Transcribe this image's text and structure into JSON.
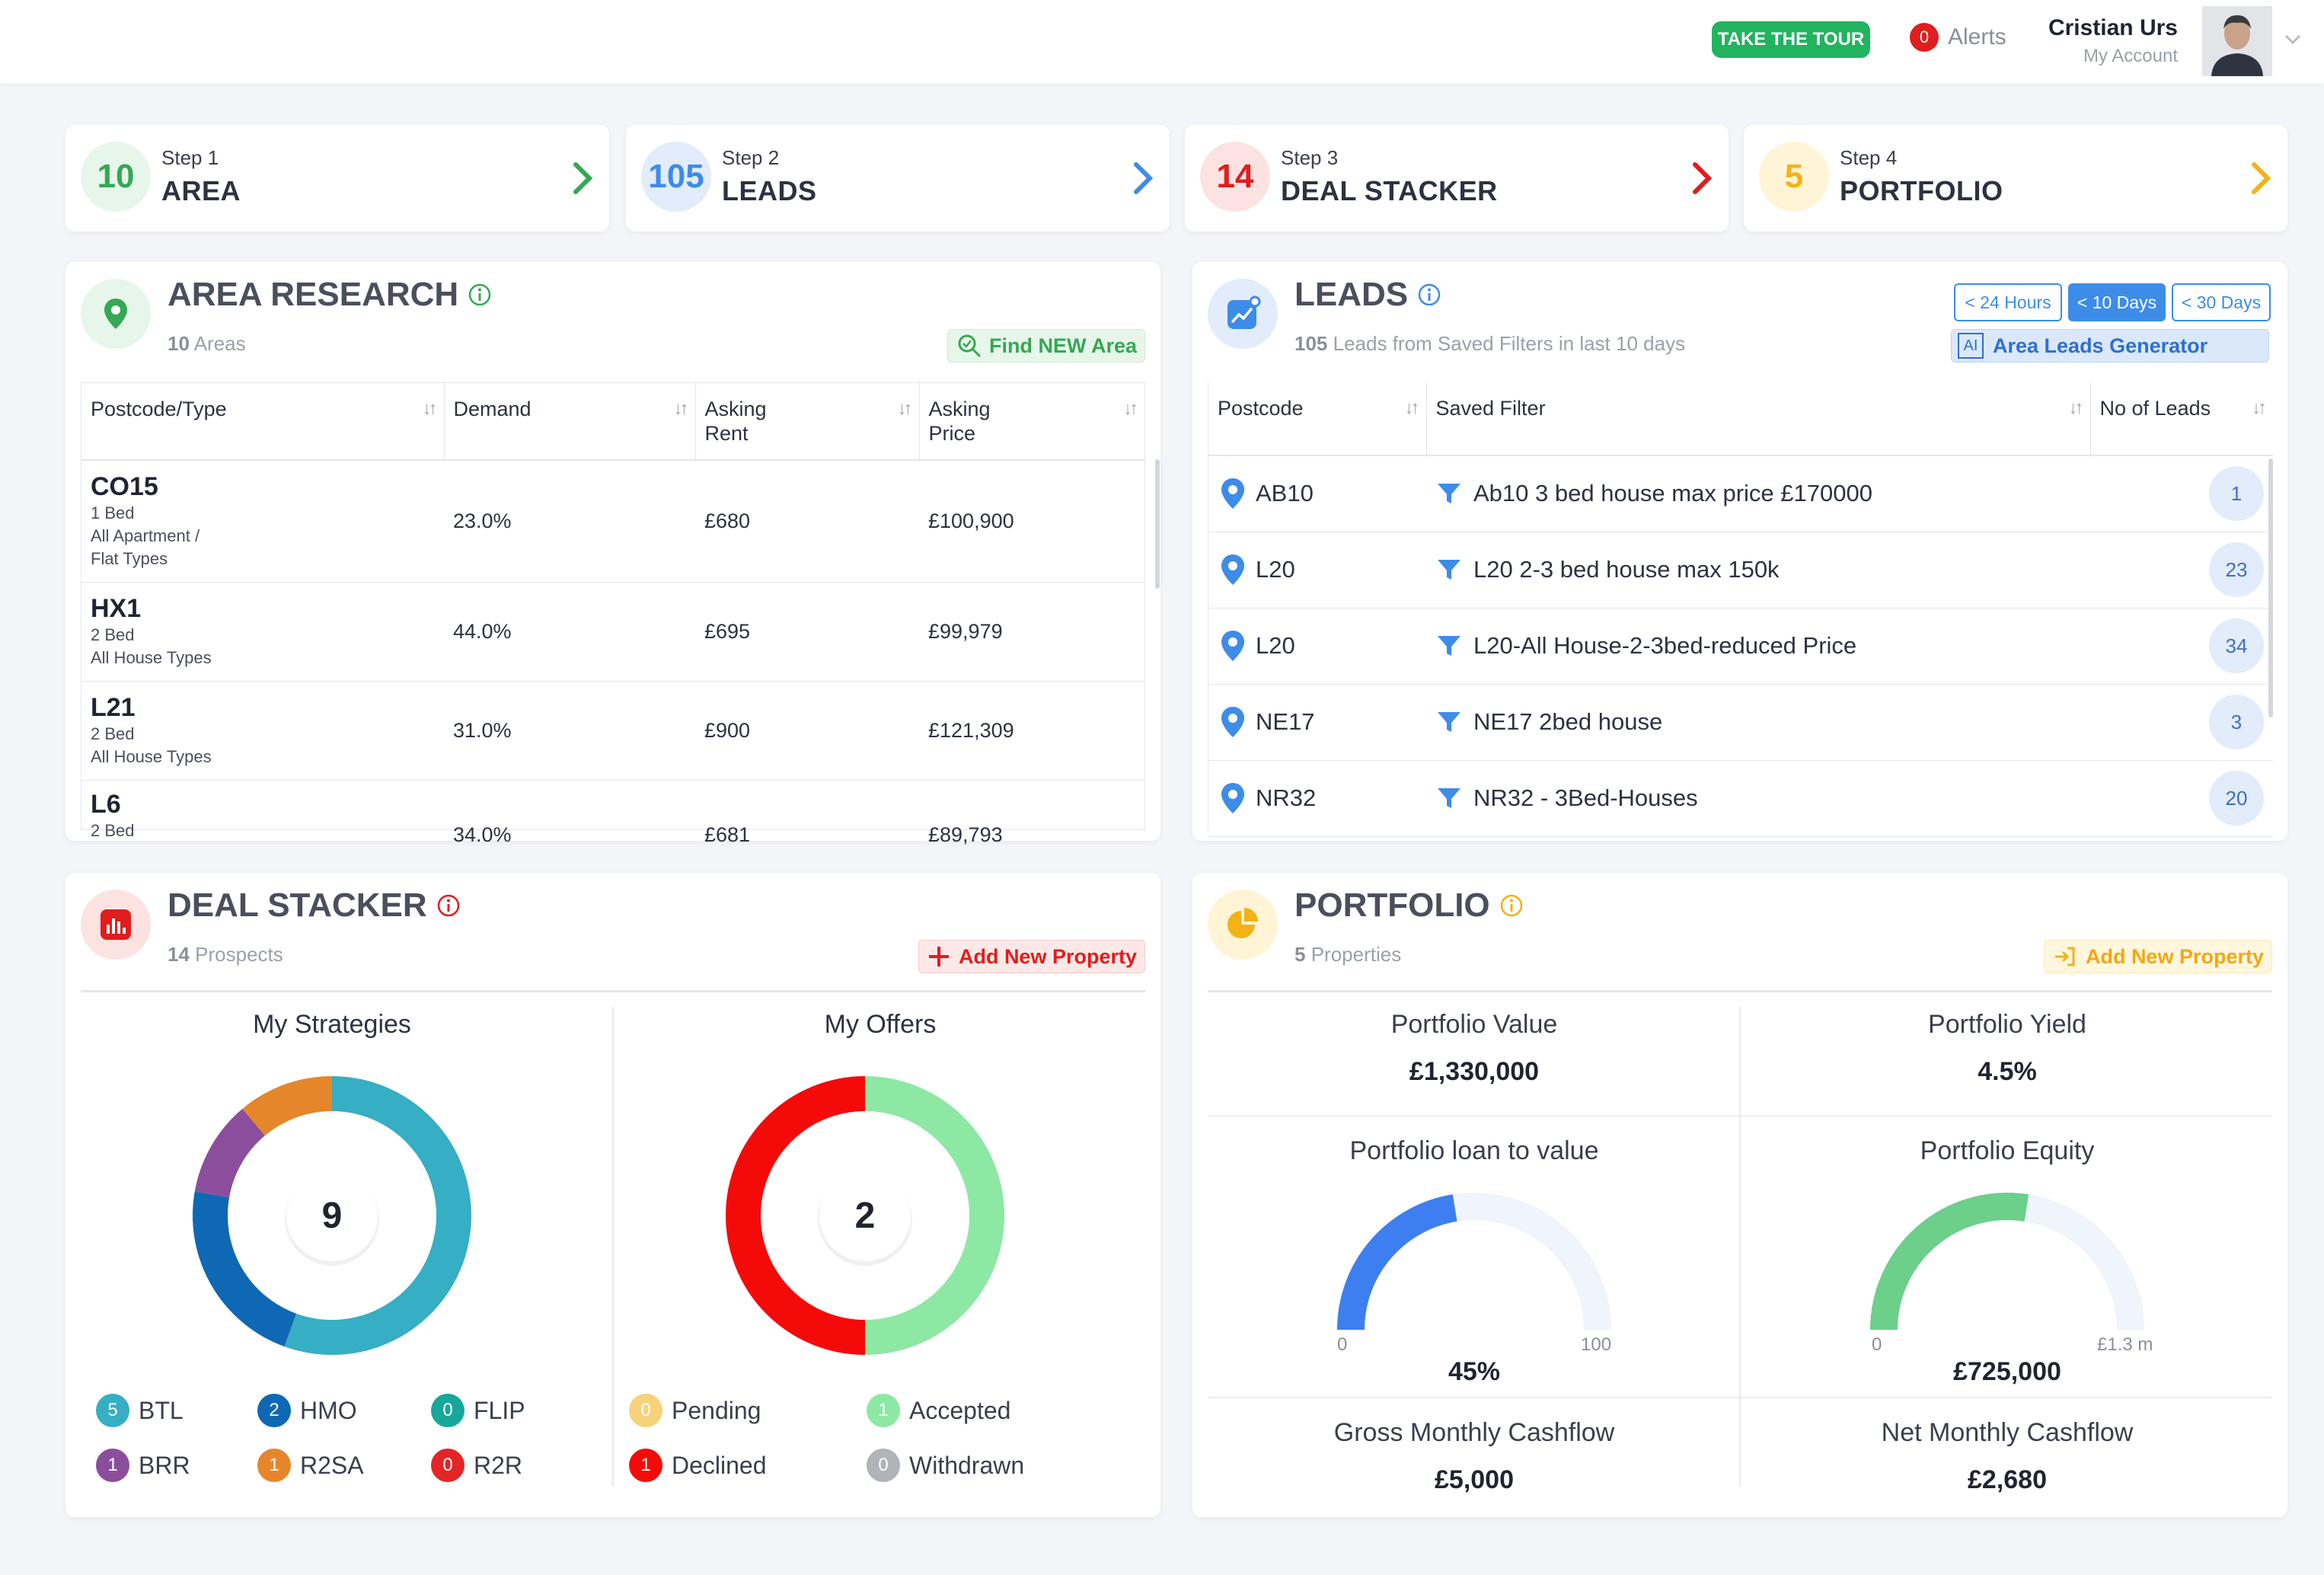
{
  "header": {
    "tour_label": "TAKE THE TOUR",
    "alerts_count": "0",
    "alerts_label": "Alerts",
    "user_name": "Cristian Urs",
    "user_sub": "My Account"
  },
  "steps": [
    {
      "num": "10",
      "small": "Step 1",
      "big": "AREA",
      "color": "#34a853",
      "bg": "#e7f6ea"
    },
    {
      "num": "105",
      "small": "Step 2",
      "big": "LEADS",
      "color": "#3d8ce8",
      "bg": "#e3ecfb"
    },
    {
      "num": "14",
      "small": "Step 3",
      "big": "DEAL STACKER",
      "color": "#e11d1d",
      "bg": "#fde2e2"
    },
    {
      "num": "5",
      "small": "Step 4",
      "big": "PORTFOLIO",
      "color": "#f3b216",
      "bg": "#fff4d6"
    }
  ],
  "area": {
    "title": "AREA RESEARCH",
    "sub_count": "10",
    "sub_label": "Areas",
    "find_label": "Find NEW Area",
    "columns": [
      "Postcode/Type",
      "Demand",
      "Asking\nRent",
      "Asking\nPrice"
    ],
    "rows": [
      {
        "code": "CO15",
        "line1": "1 Bed",
        "line2": "All Apartment /",
        "line3": "Flat Types",
        "demand": "23.0%",
        "rent": "£680",
        "price": "£100,900"
      },
      {
        "code": "HX1",
        "line1": "2 Bed",
        "line2": "All House Types",
        "line3": "",
        "demand": "44.0%",
        "rent": "£695",
        "price": "£99,979"
      },
      {
        "code": "L21",
        "line1": "2 Bed",
        "line2": "All House Types",
        "line3": "",
        "demand": "31.0%",
        "rent": "£900",
        "price": "£121,309"
      },
      {
        "code": "L6",
        "line1": "2 Bed",
        "line2": "",
        "line3": "",
        "demand": "34.0%",
        "rent": "£681",
        "price": "£89,793"
      }
    ]
  },
  "leads": {
    "title": "LEADS",
    "sub_count": "105",
    "sub_label": "Leads from Saved Filters in last 10 days",
    "ranges": [
      "< 24 Hours",
      "< 10 Days",
      "< 30 Days"
    ],
    "active_range": 1,
    "ai_label": "AI",
    "generator_label": "Area Leads Generator",
    "columns": [
      "Postcode",
      "Saved Filter",
      "No of Leads"
    ],
    "rows": [
      {
        "postcode": "AB10",
        "filter": "Ab10 3 bed house max price £170000",
        "count": "1"
      },
      {
        "postcode": "L20",
        "filter": "L20 2-3 bed house max 150k",
        "count": "23"
      },
      {
        "postcode": "L20",
        "filter": "L20-All House-2-3bed-reduced Price",
        "count": "34"
      },
      {
        "postcode": "NE17",
        "filter": "NE17 2bed house",
        "count": "3"
      },
      {
        "postcode": "NR32",
        "filter": "NR32 - 3Bed-Houses",
        "count": "20"
      }
    ]
  },
  "deal": {
    "title": "DEAL STACKER",
    "sub_count": "14",
    "sub_label": "Prospects",
    "add_label": "Add New Property",
    "strategies_title": "My Strategies",
    "strategies_total": "9",
    "offers_title": "My Offers",
    "offers_total": "2",
    "strategies": [
      {
        "name": "BTL",
        "count": 5,
        "color": "#36aec4"
      },
      {
        "name": "HMO",
        "count": 2,
        "color": "#0f68b4"
      },
      {
        "name": "FLIP",
        "count": 0,
        "color": "#16a79a"
      },
      {
        "name": "BRR",
        "count": 1,
        "color": "#8b4e9c"
      },
      {
        "name": "R2SA",
        "count": 1,
        "color": "#e6862a"
      },
      {
        "name": "R2R",
        "count": 0,
        "color": "#e22626"
      }
    ],
    "offers": [
      {
        "name": "Pending",
        "count": 0,
        "color": "#f7d27a"
      },
      {
        "name": "Accepted",
        "count": 1,
        "color": "#8de8a4"
      },
      {
        "name": "Declined",
        "count": 1,
        "color": "#f50a0a"
      },
      {
        "name": "Withdrawn",
        "count": 0,
        "color": "#b0b3b8"
      }
    ]
  },
  "portfolio": {
    "title": "PORTFOLIO",
    "sub_count": "5",
    "sub_label": "Properties",
    "add_label": "Add New Property",
    "value_label": "Portfolio Value",
    "value": "£1,330,000",
    "yield_label": "Portfolio Yield",
    "yield": "4.5%",
    "ltv_label": "Portfolio loan to value",
    "ltv_min": "0",
    "ltv_max": "100",
    "ltv_value": "45%",
    "ltv_fraction": 0.45,
    "equity_label": "Portfolio Equity",
    "equity_min": "0",
    "equity_max": "£1.3 m",
    "equity_value": "£725,000",
    "equity_fraction": 0.55,
    "gross_label": "Gross Monthly Cashflow",
    "gross": "£5,000",
    "net_label": "Net Monthly Cashflow",
    "net": "£2,680"
  }
}
